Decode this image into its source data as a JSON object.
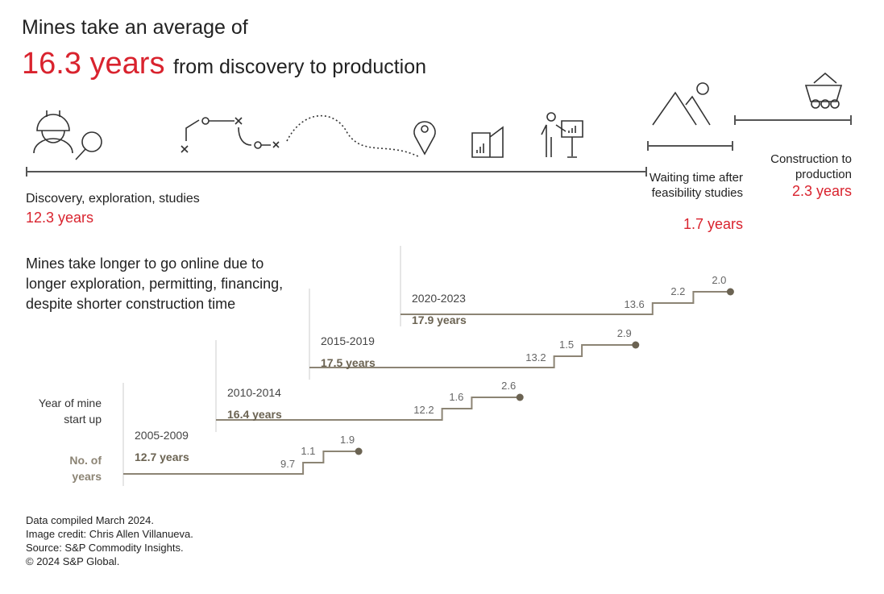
{
  "header": {
    "line1": "Mines take an average of",
    "highlight": "16.3 years",
    "line2_rest": "from discovery to production"
  },
  "icons": [
    "worker-magnifier-icon",
    "exploration-path-icon",
    "location-pin-icon",
    "report-book-icon",
    "presentation-icon",
    "mountain-icon",
    "mine-cart-icon"
  ],
  "phases": [
    {
      "label": "Discovery, exploration, studies",
      "value": "12.3 years"
    },
    {
      "label": "Waiting time after feasibility studies",
      "value": "1.7 years"
    },
    {
      "label": "Construction to production",
      "value": "2.3 years"
    }
  ],
  "subtitle": "Mines take longer to go online due to longer exploration, permitting, financing, despite shorter construction time",
  "colors": {
    "accent": "#d9232e",
    "line": "#8c8474",
    "dot": "#6b6352",
    "bold_label": "#6b6352"
  },
  "chart_data": {
    "type": "step",
    "row_label": "Year of mine start up",
    "value_label": "No. of years",
    "series": [
      {
        "name": "2005-2009",
        "total": "12.7 years",
        "values": [
          9.7,
          1.1,
          1.9
        ]
      },
      {
        "name": "2010-2014",
        "total": "16.4 years",
        "values": [
          12.2,
          1.6,
          2.6
        ]
      },
      {
        "name": "2015-2019",
        "total": "17.5 years",
        "values": [
          13.2,
          1.5,
          2.9
        ]
      },
      {
        "name": "2020-2023",
        "total": "17.9 years",
        "values": [
          13.6,
          2.2,
          2.0
        ]
      }
    ]
  },
  "footer": [
    "Data compiled March 2024.",
    "Image credit: Chris Allen Villanueva.",
    "Source: S&P Commodity Insights.",
    "© 2024 S&P Global."
  ]
}
